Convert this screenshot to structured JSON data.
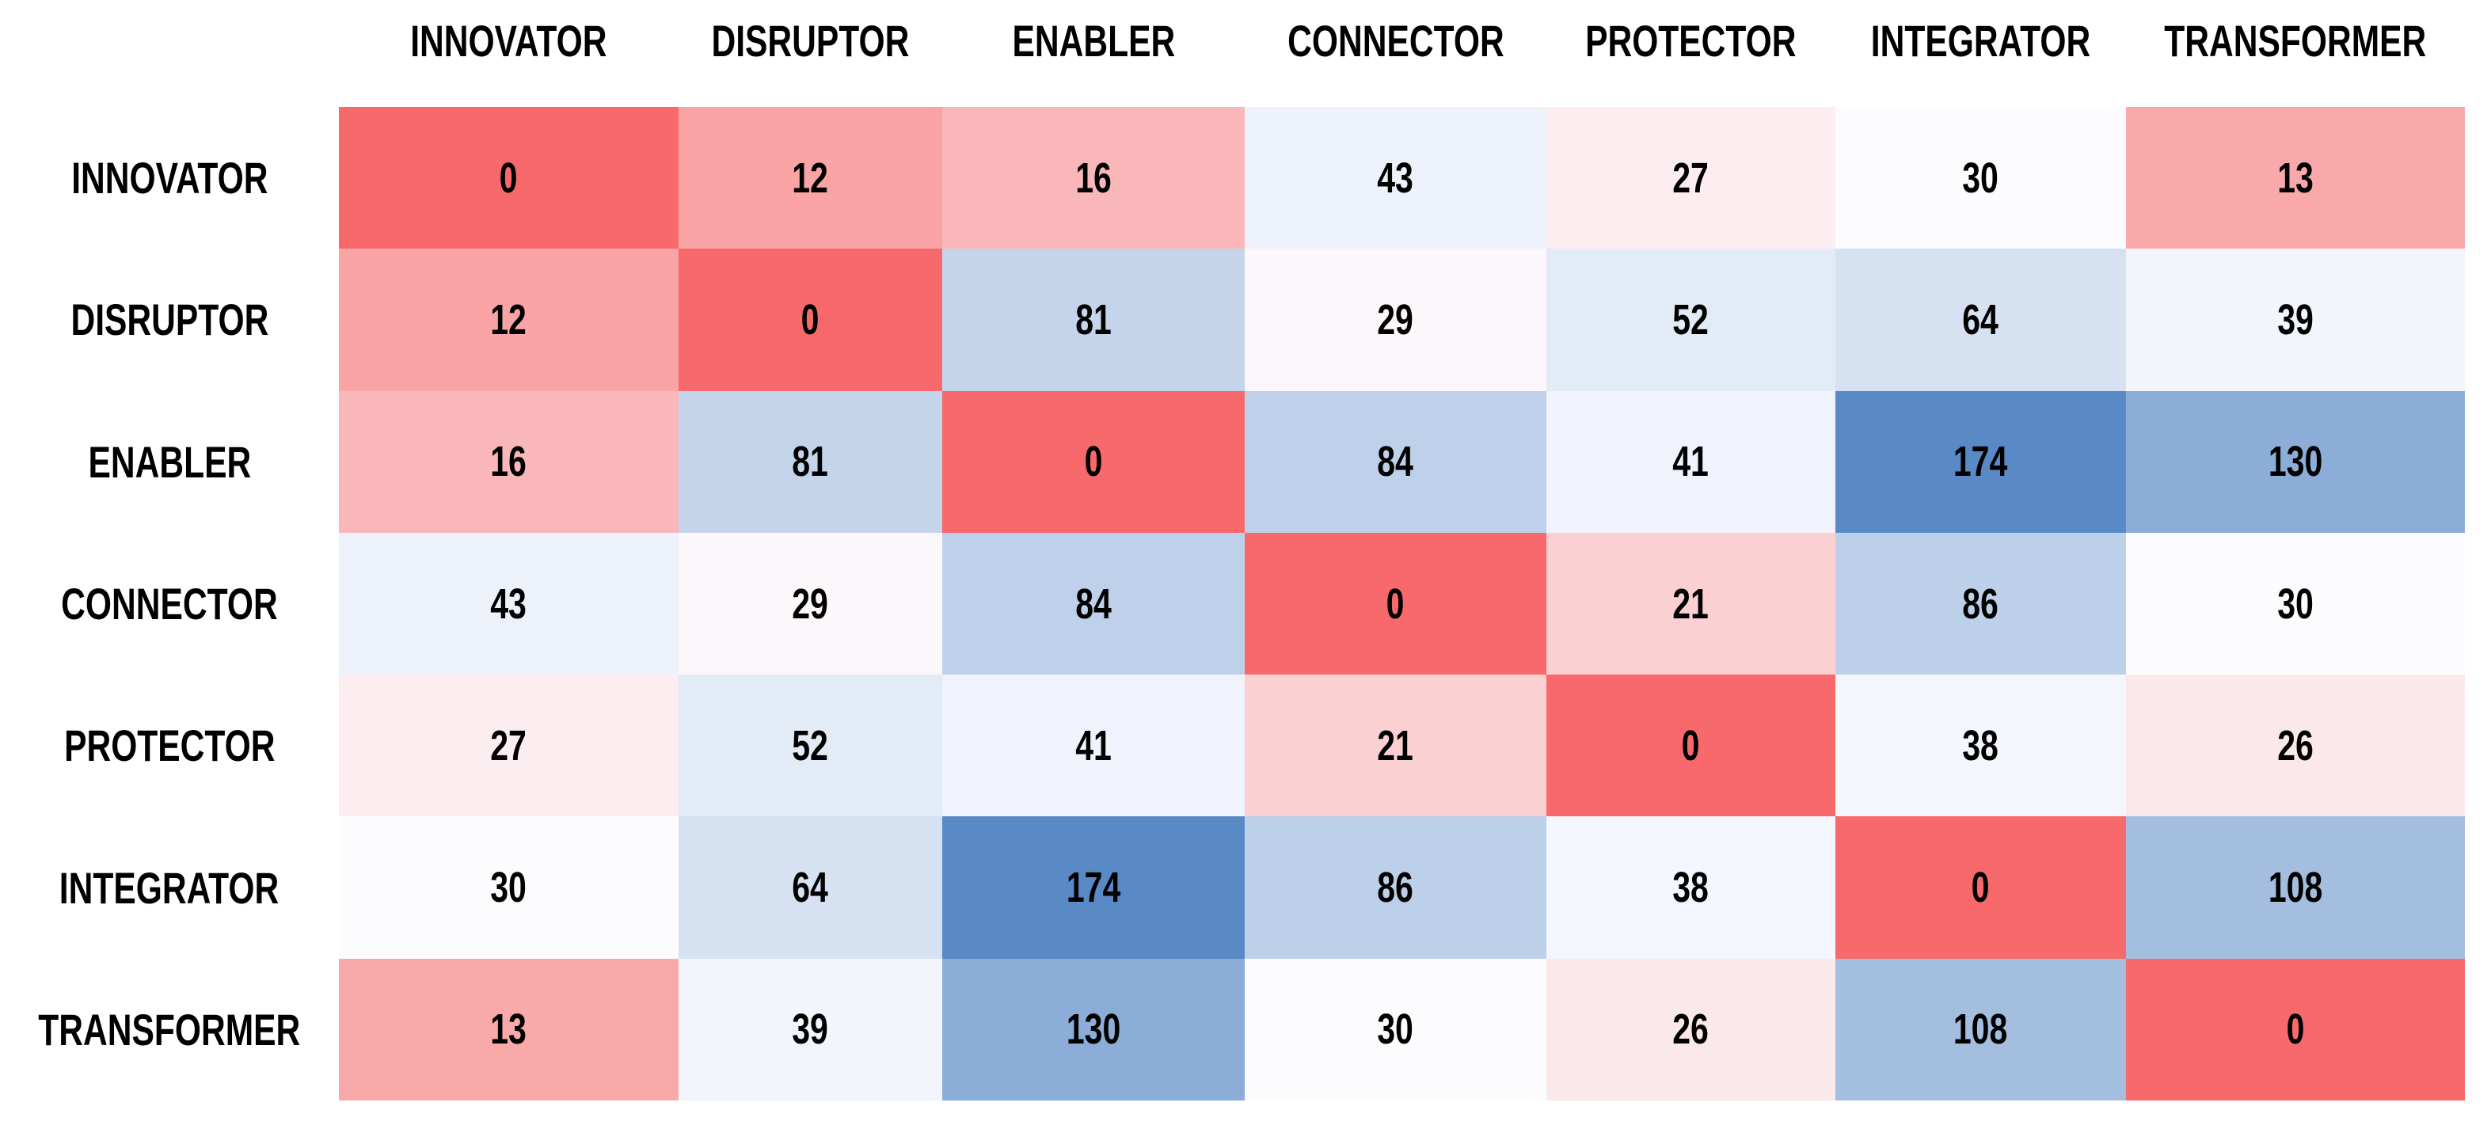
{
  "chart_data": {
    "type": "heatmap",
    "title": "",
    "corner_label": "",
    "categories": [
      "INNOVATOR",
      "DISRUPTOR",
      "ENABLER",
      "CONNECTOR",
      "PROTECTOR",
      "INTEGRATOR",
      "TRANSFORMER"
    ],
    "matrix": [
      [
        0,
        12,
        16,
        43,
        27,
        30,
        13
      ],
      [
        12,
        0,
        81,
        29,
        52,
        64,
        39
      ],
      [
        16,
        81,
        0,
        84,
        41,
        174,
        130
      ],
      [
        43,
        29,
        84,
        0,
        21,
        86,
        30
      ],
      [
        27,
        52,
        41,
        21,
        0,
        38,
        26
      ],
      [
        30,
        64,
        174,
        86,
        38,
        0,
        108
      ],
      [
        13,
        39,
        130,
        30,
        26,
        108,
        0
      ]
    ],
    "value_range": [
      0,
      174
    ],
    "colorscale": {
      "min_value": 0,
      "min_color": "#F8696B",
      "mid_value": 30,
      "mid_color": "#FCFCFF",
      "max_value": 174,
      "max_color": "#5A8AC6"
    },
    "text_color": "#000000",
    "grid": false,
    "legend": false
  }
}
